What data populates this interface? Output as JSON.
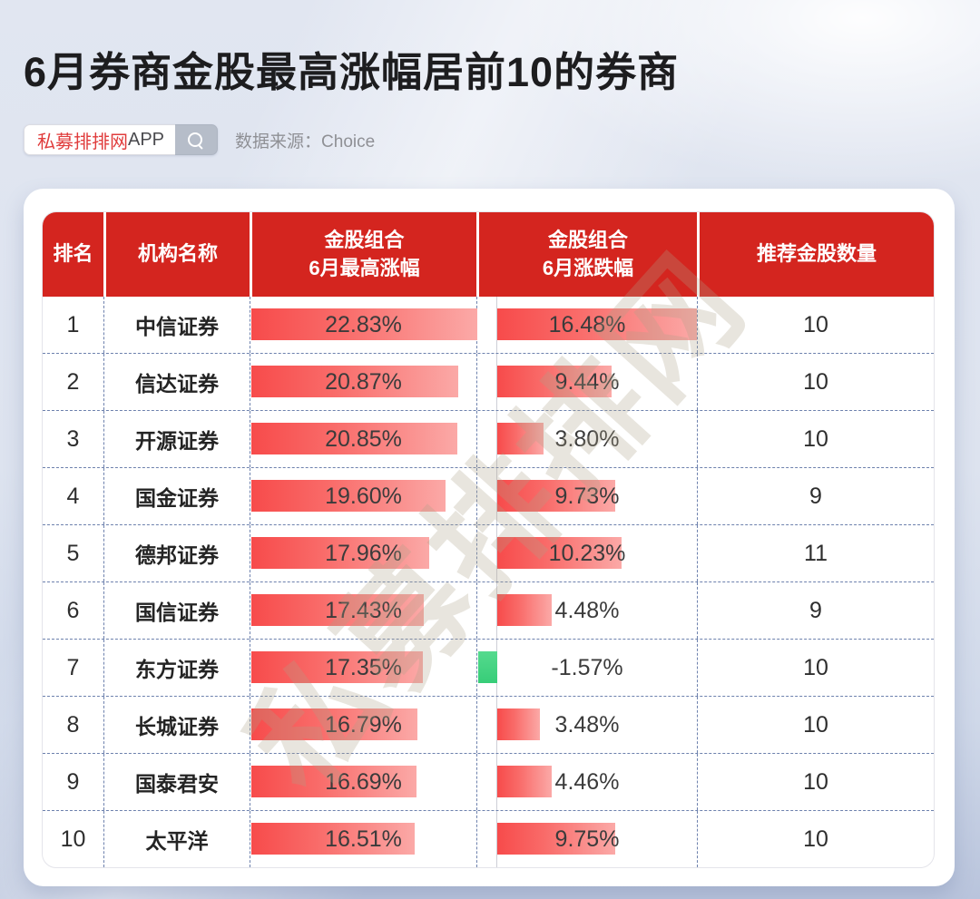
{
  "header": {
    "title": "6月券商金股最高涨幅居前10的券商",
    "badge": {
      "brand": "私募排排网",
      "suffix": "APP"
    },
    "source": "数据来源：Choice"
  },
  "watermark": "私募排排网",
  "colors": {
    "header_red": "#d4251f",
    "bar_red_start": "#f74b4b",
    "bar_red_end": "#fba9a7",
    "bar_green": "#3ecf7d",
    "brand_red": "#e03c3c",
    "background_top": "#dde3ef",
    "background_bottom": "#b9c4dc"
  },
  "chart_data": {
    "type": "bar",
    "title": "6月券商金股最高涨幅居前10的券商",
    "source": "Choice",
    "columns": [
      "排名",
      "机构名称",
      "金股组合\n6月最高涨幅",
      "金股组合\n6月涨跌幅",
      "推荐金股数量"
    ],
    "legend_position": "none",
    "grid": "dashed-row-separators",
    "bar_scale": {
      "max_gain_axis_max": 22.83,
      "change_axis_max": 16.48
    },
    "rows": [
      {
        "rank": "1",
        "name": "中信证券",
        "max_gain": 22.83,
        "max_gain_label": "22.83%",
        "change": 16.48,
        "change_label": "16.48%",
        "count": "10"
      },
      {
        "rank": "2",
        "name": "信达证券",
        "max_gain": 20.87,
        "max_gain_label": "20.87%",
        "change": 9.44,
        "change_label": "9.44%",
        "count": "10"
      },
      {
        "rank": "3",
        "name": "开源证券",
        "max_gain": 20.85,
        "max_gain_label": "20.85%",
        "change": 3.8,
        "change_label": "3.80%",
        "count": "10"
      },
      {
        "rank": "4",
        "name": "国金证券",
        "max_gain": 19.6,
        "max_gain_label": "19.60%",
        "change": 9.73,
        "change_label": "9.73%",
        "count": "9"
      },
      {
        "rank": "5",
        "name": "德邦证券",
        "max_gain": 17.96,
        "max_gain_label": "17.96%",
        "change": 10.23,
        "change_label": "10.23%",
        "count": "11"
      },
      {
        "rank": "6",
        "name": "国信证券",
        "max_gain": 17.43,
        "max_gain_label": "17.43%",
        "change": 4.48,
        "change_label": "4.48%",
        "count": "9"
      },
      {
        "rank": "7",
        "name": "东方证券",
        "max_gain": 17.35,
        "max_gain_label": "17.35%",
        "change": -1.57,
        "change_label": "-1.57%",
        "count": "10"
      },
      {
        "rank": "8",
        "name": "长城证券",
        "max_gain": 16.79,
        "max_gain_label": "16.79%",
        "change": 3.48,
        "change_label": "3.48%",
        "count": "10"
      },
      {
        "rank": "9",
        "name": "国泰君安",
        "max_gain": 16.69,
        "max_gain_label": "16.69%",
        "change": 4.46,
        "change_label": "4.46%",
        "count": "10"
      },
      {
        "rank": "10",
        "name": "太平洋",
        "max_gain": 16.51,
        "max_gain_label": "16.51%",
        "change": 9.75,
        "change_label": "9.75%",
        "count": "10"
      }
    ]
  }
}
